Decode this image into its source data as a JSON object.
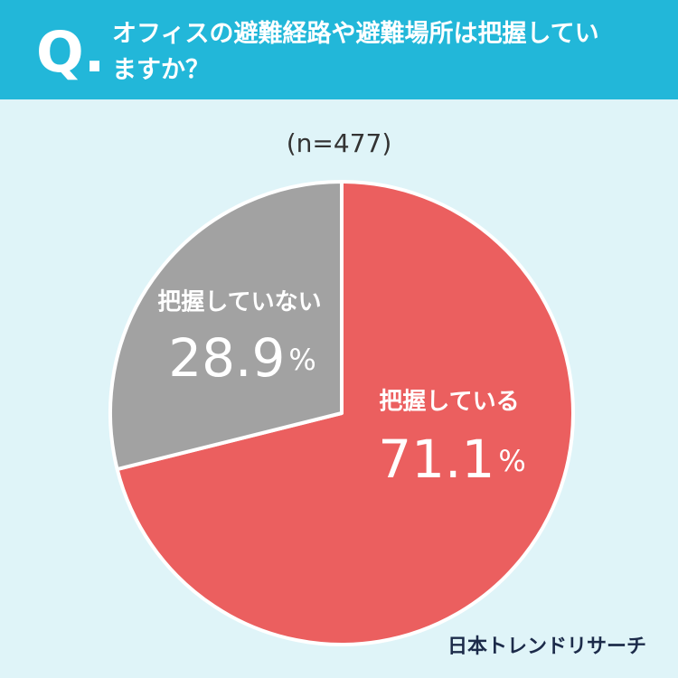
{
  "chart_data": {
    "type": "pie",
    "question_label": "Q.",
    "title": "オフィスの避難経路や避難場所は把握していますか？",
    "note": "(n=477)",
    "source": "日本トレンドリサーチ",
    "categories": [
      "把握している",
      "把握していない"
    ],
    "values": [
      71.1,
      28.9
    ],
    "value_labels": [
      "71.1%",
      "28.9%"
    ],
    "colors": [
      "#eb5f5f",
      "#a2a2a2"
    ]
  }
}
